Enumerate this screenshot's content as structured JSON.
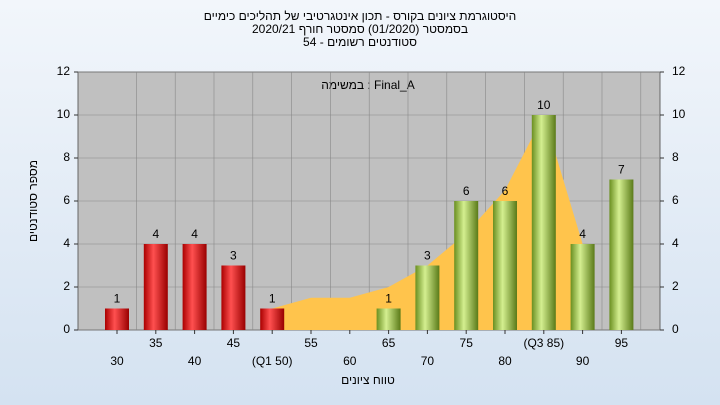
{
  "chart_data": {
    "type": "bar",
    "title": "היסטוגרמת ציונים בקורס - תכון אינטגרטיבי של תהליכים כימיים",
    "subtitle": "בסמסטר  (01/2020)  סמסטר חורף  2020/21",
    "subtitle2": "סטודנטים רשומים - 54",
    "annotation": "במשימה : Final_A",
    "xlabel": "טווח ציונים",
    "ylabel": "מספר סטודנטים",
    "categories": [
      "30",
      "35",
      "40",
      "45",
      "(Q1 50)",
      "55",
      "60",
      "65",
      "70",
      "75",
      "80",
      "(Q3 85)",
      "90",
      "95"
    ],
    "values": [
      1,
      4,
      4,
      3,
      1,
      0,
      0,
      1,
      3,
      6,
      6,
      10,
      4,
      7
    ],
    "bar_colors": [
      "#e02020",
      "#e02020",
      "#e02020",
      "#e02020",
      "#e02020",
      "#e02020",
      "#e02020",
      "#8cc63f",
      "#8cc63f",
      "#8cc63f",
      "#8cc63f",
      "#8cc63f",
      "#8cc63f",
      "#8cc63f"
    ],
    "trend": [
      null,
      null,
      null,
      null,
      1,
      1.5,
      1.5,
      2,
      3,
      4.5,
      6.5,
      10,
      4,
      null
    ],
    "trend_color": "#ffc44c",
    "ylim": [
      0,
      12
    ],
    "yticks": [
      0,
      2,
      4,
      6,
      8,
      10,
      12
    ],
    "y2lim": [
      0,
      12
    ],
    "y2ticks": [
      0,
      2,
      4,
      6,
      8,
      10,
      12
    ],
    "grid": true
  }
}
